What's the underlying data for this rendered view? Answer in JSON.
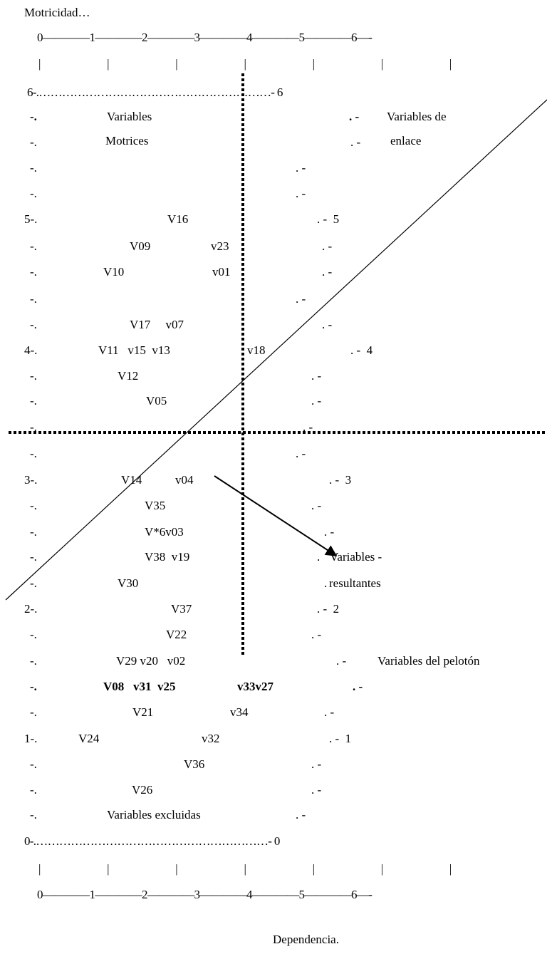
{
  "y_axis_label": "Motricidad…",
  "x_axis_label": "Dependencia.",
  "axis_scale_top": "0————1————2————3————4————5————6—-",
  "axis_scale_bottom": "0————1————2————3————4————5————6—-",
  "tick_marks": "|       |       |       |       |       |       |",
  "grid_row_6": "6-.……………………………………………………- 6",
  "grid_row_0": "0-.……………………………………………………- 0",
  "quadrants": {
    "motrices_1": "Variables",
    "motrices_2": "Motrices",
    "enlace_1": "Variables de",
    "enlace_2": "enlace",
    "resultantes_1": "Variables -",
    "resultantes_2": "resultantes",
    "peloton": "Variables del pelotón",
    "excluidas": "Variables excluidas"
  },
  "rows": [
    {
      "left": "-.",
      "right": ". -"
    },
    {
      "left": "-.",
      "right": ". -"
    },
    {
      "left": "-.",
      "right": ". -"
    },
    {
      "left": "-.",
      "right": ". -"
    },
    {
      "left": "5-.",
      "right": ". -  5"
    },
    {
      "left": "-.",
      "right": ". -"
    },
    {
      "left": "-.",
      "right": ". -"
    },
    {
      "left": "-.",
      "right": ". -"
    },
    {
      "left": "-.",
      "right": ". -"
    },
    {
      "left": "4-.",
      "right": ". -  4"
    },
    {
      "left": "-.",
      "right": ". -"
    },
    {
      "left": "-.",
      "right": ". -"
    },
    {
      "left": "-.",
      "right": ". -"
    },
    {
      "left": "-.",
      "right": ". -"
    },
    {
      "left": "3-.",
      "right": ". -  3"
    },
    {
      "left": "-.",
      "right": ". -"
    },
    {
      "left": "-.",
      "right": ". -"
    },
    {
      "left": "-.",
      "right": "."
    },
    {
      "left": "-.",
      "right": "."
    },
    {
      "left": "2-.",
      "right": ". -  2"
    },
    {
      "left": "-.",
      "right": ". -"
    },
    {
      "left": "-.",
      "right": ". -"
    },
    {
      "left": "-.",
      "right": ". -"
    },
    {
      "left": "-.",
      "right": ". -"
    },
    {
      "left": "1-.",
      "right": ". -  1"
    },
    {
      "left": "-.",
      "right": ". -"
    },
    {
      "left": "-.",
      "right": ". -"
    },
    {
      "left": "-.",
      "right": ". -"
    },
    {
      "left": "-.",
      "right": ""
    }
  ],
  "variables": {
    "r5": "V16",
    "r5a_1": "V09",
    "r5a_2": "v23",
    "r5b_1": "V10",
    "r5b_2": "v01",
    "r4a": "V17     v07",
    "r4_1": "V11   v15  v13",
    "r4_2": "v18",
    "r4b": "V12",
    "r4c": "V05",
    "r3_1": "V14",
    "r3_2": "v04",
    "r3a": "V35",
    "r3b": "V*6v03",
    "r3c": "V38  v19",
    "r3d": "V30",
    "r2": "V37",
    "r2a": "V22",
    "r2b": "V29 v20   v02",
    "peloton_1": "V08   v31  v25",
    "peloton_2": "v33v27",
    "r1a_1": "V21",
    "r1a_2": "v34",
    "r1_1": "V24",
    "r1_2": "v32",
    "r1b": "V36",
    "r1c": "V26"
  }
}
